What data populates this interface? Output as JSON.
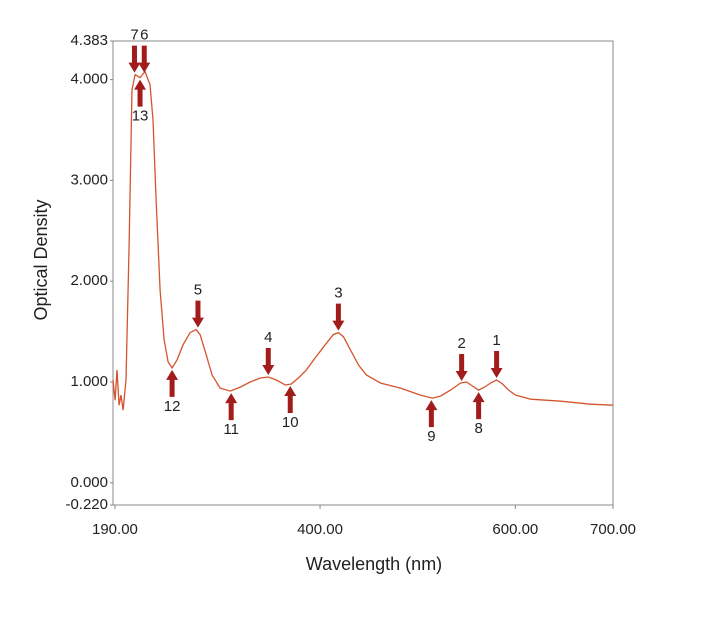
{
  "chart_data": {
    "type": "line",
    "xlabel": "Wavelength (nm)",
    "ylabel": "Optical Density",
    "xlim": [
      188,
      700
    ],
    "ylim": [
      -0.22,
      4.383
    ],
    "xticks": [
      {
        "value": 190,
        "label": "190.00"
      },
      {
        "value": 400,
        "label": "400.00"
      },
      {
        "value": 600,
        "label": "600.00"
      },
      {
        "value": 700,
        "label": "700.00"
      }
    ],
    "yticks": [
      {
        "value": -0.22,
        "label": "-0.220"
      },
      {
        "value": 0,
        "label": "0.000"
      },
      {
        "value": 1,
        "label": "1.000"
      },
      {
        "value": 2,
        "label": "2.000"
      },
      {
        "value": 3,
        "label": "3.000"
      },
      {
        "value": 4,
        "label": "4.000"
      },
      {
        "value": 4.383,
        "label": "4.383"
      }
    ],
    "grid": false,
    "series": [
      {
        "color": "#d4542e",
        "x": [
          188,
          190.1,
          192.1,
          194.2,
          196.2,
          198.3,
          201.3,
          204.4,
          207.5,
          210.6,
          215.7,
          220.8,
          225.9,
          229.0,
          232.1,
          236.2,
          240.3,
          244.4,
          248.5,
          253.6,
          259.8,
          267.0,
          273.1,
          277.2,
          283.4,
          289.5,
          297.7,
          308.0,
          318.3,
          328.5,
          338.8,
          347.0,
          355.2,
          364.4,
          370.6,
          377.7,
          386.0,
          395.2,
          405.4,
          413.6,
          418.8,
          423.9,
          431.1,
          439.3,
          447.5,
          461.8,
          482.4,
          502.9,
          515.2,
          523.4,
          533.6,
          543.9,
          550.1,
          556.2,
          562.4,
          568.5,
          574.7,
          580.8,
          587.0,
          593.1,
          600.3,
          615.7,
          646.5,
          677.2,
          700
        ],
        "values": [
          1.02,
          0.82,
          1.12,
          0.77,
          0.87,
          0.72,
          1.02,
          2.31,
          3.9,
          4.05,
          4.02,
          4.08,
          3.95,
          3.6,
          2.81,
          1.91,
          1.42,
          1.2,
          1.14,
          1.22,
          1.37,
          1.49,
          1.52,
          1.47,
          1.27,
          1.07,
          0.94,
          0.91,
          0.95,
          1.0,
          1.04,
          1.05,
          1.02,
          0.97,
          0.98,
          1.04,
          1.12,
          1.24,
          1.37,
          1.47,
          1.49,
          1.45,
          1.32,
          1.17,
          1.07,
          0.99,
          0.94,
          0.87,
          0.84,
          0.86,
          0.92,
          0.99,
          1.0,
          0.96,
          0.92,
          0.95,
          0.99,
          1.02,
          0.98,
          0.92,
          0.87,
          0.83,
          0.81,
          0.78,
          0.77
        ]
      }
    ],
    "arrow_color": "#a31c1c",
    "annotations": [
      {
        "text": "1",
        "x": 580.8,
        "y": 1.02,
        "direction": "down"
      },
      {
        "text": "2",
        "x": 545,
        "y": 0.99,
        "direction": "down"
      },
      {
        "text": "3",
        "x": 418.8,
        "y": 1.49,
        "direction": "down"
      },
      {
        "text": "4",
        "x": 347,
        "y": 1.05,
        "direction": "down"
      },
      {
        "text": "5",
        "x": 275,
        "y": 1.52,
        "direction": "down"
      },
      {
        "text": "6",
        "x": 220,
        "y": 4.05,
        "direction": "down"
      },
      {
        "text": "7",
        "x": 210,
        "y": 4.05,
        "direction": "down"
      },
      {
        "text": "8",
        "x": 562.4,
        "y": 0.92,
        "direction": "up"
      },
      {
        "text": "9",
        "x": 514,
        "y": 0.84,
        "direction": "up"
      },
      {
        "text": "10",
        "x": 369.5,
        "y": 0.98,
        "direction": "up"
      },
      {
        "text": "11",
        "x": 309,
        "y": 0.91,
        "direction": "up"
      },
      {
        "text": "12",
        "x": 248.5,
        "y": 1.14,
        "direction": "up"
      },
      {
        "text": "13",
        "x": 215.7,
        "y": 4.02,
        "direction": "up"
      }
    ]
  }
}
